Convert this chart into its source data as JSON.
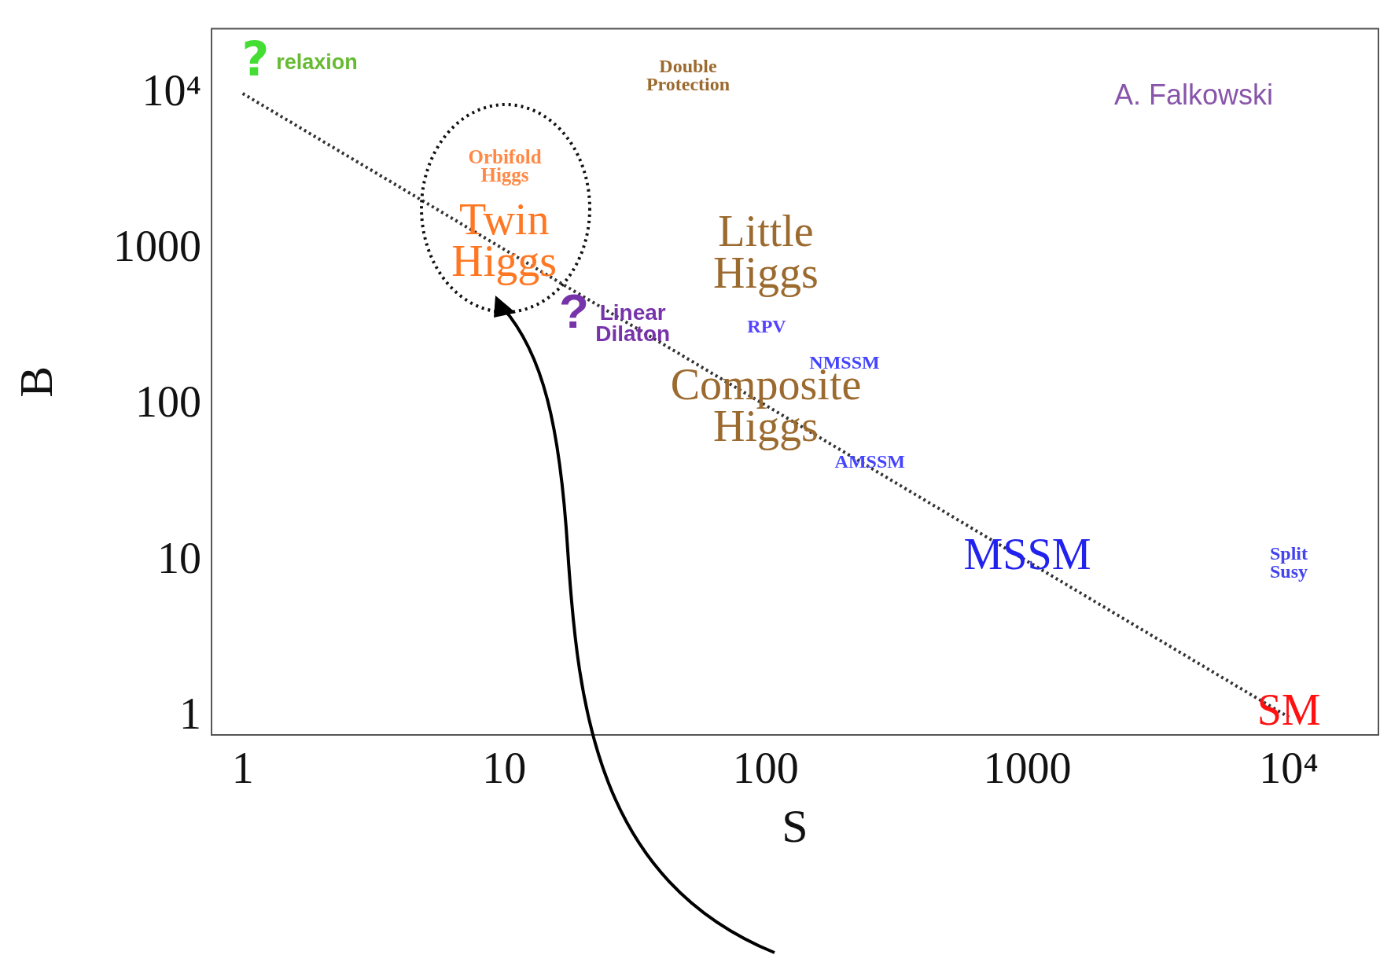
{
  "chart_data": {
    "type": "line",
    "xlabel": "S",
    "ylabel": "B",
    "log": "xy",
    "x": [
      1,
      10000
    ],
    "series": [
      {
        "color": "#333333",
        "values": [
          10000,
          1
        ],
        "line_style": "dotted"
      }
    ],
    "xlim": [
      0.76,
      22000
    ],
    "ylim": [
      0.77,
      26000
    ],
    "xticks": [
      1,
      10,
      100,
      1000,
      {
        "value": 10000,
        "label": "10⁴"
      }
    ],
    "yticks": [
      1,
      10,
      100,
      1000,
      {
        "value": 10000,
        "label": "10⁴"
      }
    ],
    "grid": false,
    "legend": false,
    "marker": "none",
    "annotations": [
      "?",
      "relaxion",
      "Double\nProtection",
      "Orbifold\nHiggs",
      {
        "text": "Twin\nHiggs",
        "x": 10,
        "y": 1090
      },
      "Little\nHiggs",
      "?",
      {
        "text": "Linear\nDilaton",
        "x": 31,
        "y": 330
      },
      "RPV",
      "NMSSM",
      "Composite\nHiggs",
      {
        "text": "AMSSM",
        "x": 250,
        "y": 43
      },
      {
        "text": "MSSM",
        "x": 1000,
        "y": 10.6
      },
      "Split\nSusy",
      {
        "text": "SM",
        "x": 10000,
        "y": 1.06
      },
      "A. Falkowski"
    ]
  }
}
